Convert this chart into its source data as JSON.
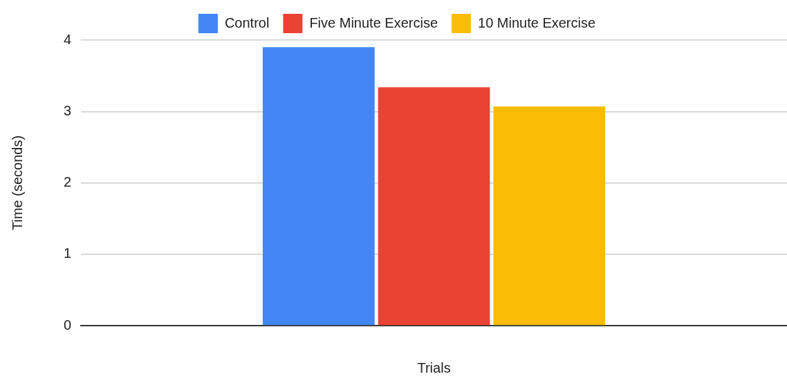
{
  "chart_data": {
    "type": "bar",
    "xlabel": "Trials",
    "ylabel": "Time (seconds)",
    "categories": [
      null
    ],
    "series": [
      {
        "name": "Control",
        "color": "#4285f4",
        "values": [
          3.9
        ]
      },
      {
        "name": "Five Minute Exercise",
        "color": "#ea4335",
        "values": [
          3.34
        ]
      },
      {
        "name": "10 Minute Exercise",
        "color": "#fbbc04",
        "values": [
          3.07
        ]
      }
    ],
    "ylim": [
      0,
      4
    ],
    "yticks": [
      0,
      1,
      2,
      3,
      4
    ],
    "grid": "y",
    "legend": "top"
  }
}
